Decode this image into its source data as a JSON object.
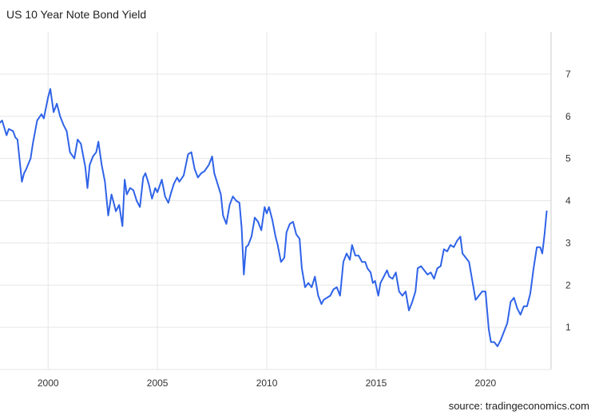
{
  "header": {
    "title": "US 10 Year Note Bond Yield"
  },
  "footer": {
    "source": "source: tradingeconomics.com"
  },
  "colors": {
    "line": "#2f63e8",
    "grid": "#e6e6e6",
    "axis": "#cccccc"
  },
  "chart_data": {
    "type": "line",
    "title": "US 10 Year Note Bond Yield",
    "xlabel": "",
    "ylabel": "",
    "xlim": [
      1997.8,
      2023.0
    ],
    "ylim": [
      0,
      8
    ],
    "x_ticks": [
      2000,
      2005,
      2010,
      2015,
      2020
    ],
    "x_tick_labels": [
      "2000",
      "2005",
      "2010",
      "2015",
      "2020"
    ],
    "y_ticks": [
      1,
      2,
      3,
      4,
      5,
      6,
      7
    ],
    "y_tick_labels": [
      "1",
      "2",
      "3",
      "4",
      "5",
      "6",
      "7"
    ],
    "y_axis_side": "right",
    "grid": true,
    "legend": "none",
    "series": [
      {
        "values": [
          [
            1997.8,
            5.85
          ],
          [
            1997.9,
            5.9
          ],
          [
            1998.1,
            5.55
          ],
          [
            1998.2,
            5.7
          ],
          [
            1998.4,
            5.65
          ],
          [
            1998.5,
            5.5
          ],
          [
            1998.6,
            5.45
          ],
          [
            1998.8,
            4.45
          ],
          [
            1998.9,
            4.65
          ],
          [
            1999.0,
            4.75
          ],
          [
            1999.2,
            5.0
          ],
          [
            1999.3,
            5.35
          ],
          [
            1999.5,
            5.9
          ],
          [
            1999.7,
            6.05
          ],
          [
            1999.8,
            5.95
          ],
          [
            2000.0,
            6.45
          ],
          [
            2000.1,
            6.65
          ],
          [
            2000.25,
            6.1
          ],
          [
            2000.4,
            6.3
          ],
          [
            2000.55,
            6.0
          ],
          [
            2000.7,
            5.8
          ],
          [
            2000.85,
            5.65
          ],
          [
            2001.0,
            5.15
          ],
          [
            2001.2,
            5.0
          ],
          [
            2001.35,
            5.45
          ],
          [
            2001.5,
            5.35
          ],
          [
            2001.7,
            4.8
          ],
          [
            2001.8,
            4.3
          ],
          [
            2001.9,
            4.85
          ],
          [
            2002.05,
            5.05
          ],
          [
            2002.2,
            5.15
          ],
          [
            2002.3,
            5.4
          ],
          [
            2002.45,
            4.85
          ],
          [
            2002.6,
            4.45
          ],
          [
            2002.75,
            3.65
          ],
          [
            2002.9,
            4.15
          ],
          [
            2003.0,
            3.95
          ],
          [
            2003.1,
            3.75
          ],
          [
            2003.25,
            3.9
          ],
          [
            2003.4,
            3.4
          ],
          [
            2003.5,
            4.5
          ],
          [
            2003.6,
            4.15
          ],
          [
            2003.75,
            4.3
          ],
          [
            2003.9,
            4.25
          ],
          [
            2004.05,
            4.0
          ],
          [
            2004.2,
            3.85
          ],
          [
            2004.35,
            4.55
          ],
          [
            2004.45,
            4.65
          ],
          [
            2004.6,
            4.4
          ],
          [
            2004.75,
            4.05
          ],
          [
            2004.9,
            4.3
          ],
          [
            2005.0,
            4.2
          ],
          [
            2005.2,
            4.5
          ],
          [
            2005.35,
            4.1
          ],
          [
            2005.5,
            3.95
          ],
          [
            2005.6,
            4.15
          ],
          [
            2005.75,
            4.4
          ],
          [
            2005.9,
            4.55
          ],
          [
            2006.0,
            4.45
          ],
          [
            2006.2,
            4.6
          ],
          [
            2006.4,
            5.1
          ],
          [
            2006.55,
            5.15
          ],
          [
            2006.7,
            4.75
          ],
          [
            2006.85,
            4.55
          ],
          [
            2007.0,
            4.65
          ],
          [
            2007.15,
            4.7
          ],
          [
            2007.35,
            4.85
          ],
          [
            2007.5,
            5.05
          ],
          [
            2007.6,
            4.65
          ],
          [
            2007.75,
            4.4
          ],
          [
            2007.9,
            4.15
          ],
          [
            2008.0,
            3.65
          ],
          [
            2008.15,
            3.45
          ],
          [
            2008.3,
            3.9
          ],
          [
            2008.45,
            4.1
          ],
          [
            2008.6,
            4.0
          ],
          [
            2008.75,
            3.95
          ],
          [
            2008.85,
            3.35
          ],
          [
            2008.95,
            2.25
          ],
          [
            2009.05,
            2.9
          ],
          [
            2009.15,
            2.95
          ],
          [
            2009.3,
            3.15
          ],
          [
            2009.45,
            3.6
          ],
          [
            2009.6,
            3.5
          ],
          [
            2009.75,
            3.3
          ],
          [
            2009.9,
            3.85
          ],
          [
            2010.0,
            3.7
          ],
          [
            2010.1,
            3.85
          ],
          [
            2010.25,
            3.55
          ],
          [
            2010.4,
            3.15
          ],
          [
            2010.5,
            2.95
          ],
          [
            2010.65,
            2.55
          ],
          [
            2010.8,
            2.65
          ],
          [
            2010.9,
            3.25
          ],
          [
            2011.05,
            3.45
          ],
          [
            2011.2,
            3.5
          ],
          [
            2011.35,
            3.2
          ],
          [
            2011.5,
            3.1
          ],
          [
            2011.6,
            2.4
          ],
          [
            2011.75,
            1.95
          ],
          [
            2011.9,
            2.05
          ],
          [
            2012.05,
            1.95
          ],
          [
            2012.2,
            2.2
          ],
          [
            2012.35,
            1.75
          ],
          [
            2012.5,
            1.55
          ],
          [
            2012.6,
            1.65
          ],
          [
            2012.75,
            1.7
          ],
          [
            2012.9,
            1.75
          ],
          [
            2013.05,
            1.9
          ],
          [
            2013.2,
            1.95
          ],
          [
            2013.35,
            1.75
          ],
          [
            2013.5,
            2.55
          ],
          [
            2013.65,
            2.75
          ],
          [
            2013.8,
            2.6
          ],
          [
            2013.9,
            2.95
          ],
          [
            2014.05,
            2.7
          ],
          [
            2014.2,
            2.7
          ],
          [
            2014.35,
            2.55
          ],
          [
            2014.5,
            2.55
          ],
          [
            2014.6,
            2.4
          ],
          [
            2014.75,
            2.3
          ],
          [
            2014.85,
            2.05
          ],
          [
            2014.95,
            2.1
          ],
          [
            2015.1,
            1.75
          ],
          [
            2015.2,
            2.05
          ],
          [
            2015.35,
            2.2
          ],
          [
            2015.5,
            2.35
          ],
          [
            2015.6,
            2.2
          ],
          [
            2015.75,
            2.15
          ],
          [
            2015.9,
            2.3
          ],
          [
            2016.05,
            1.85
          ],
          [
            2016.2,
            1.75
          ],
          [
            2016.35,
            1.85
          ],
          [
            2016.5,
            1.4
          ],
          [
            2016.65,
            1.6
          ],
          [
            2016.8,
            1.85
          ],
          [
            2016.9,
            2.4
          ],
          [
            2017.05,
            2.45
          ],
          [
            2017.2,
            2.35
          ],
          [
            2017.35,
            2.25
          ],
          [
            2017.5,
            2.3
          ],
          [
            2017.65,
            2.15
          ],
          [
            2017.8,
            2.4
          ],
          [
            2017.95,
            2.45
          ],
          [
            2018.1,
            2.85
          ],
          [
            2018.25,
            2.8
          ],
          [
            2018.4,
            2.95
          ],
          [
            2018.55,
            2.9
          ],
          [
            2018.7,
            3.05
          ],
          [
            2018.85,
            3.15
          ],
          [
            2018.95,
            2.75
          ],
          [
            2019.1,
            2.65
          ],
          [
            2019.25,
            2.55
          ],
          [
            2019.4,
            2.1
          ],
          [
            2019.55,
            1.65
          ],
          [
            2019.7,
            1.75
          ],
          [
            2019.85,
            1.85
          ],
          [
            2020.0,
            1.85
          ],
          [
            2020.15,
            0.95
          ],
          [
            2020.25,
            0.65
          ],
          [
            2020.4,
            0.65
          ],
          [
            2020.55,
            0.55
          ],
          [
            2020.7,
            0.7
          ],
          [
            2020.85,
            0.9
          ],
          [
            2021.0,
            1.1
          ],
          [
            2021.15,
            1.6
          ],
          [
            2021.3,
            1.7
          ],
          [
            2021.45,
            1.45
          ],
          [
            2021.6,
            1.3
          ],
          [
            2021.75,
            1.5
          ],
          [
            2021.9,
            1.5
          ],
          [
            2022.05,
            1.8
          ],
          [
            2022.2,
            2.4
          ],
          [
            2022.35,
            2.9
          ],
          [
            2022.5,
            2.9
          ],
          [
            2022.6,
            2.75
          ],
          [
            2022.7,
            3.2
          ],
          [
            2022.8,
            3.75
          ]
        ]
      }
    ]
  }
}
